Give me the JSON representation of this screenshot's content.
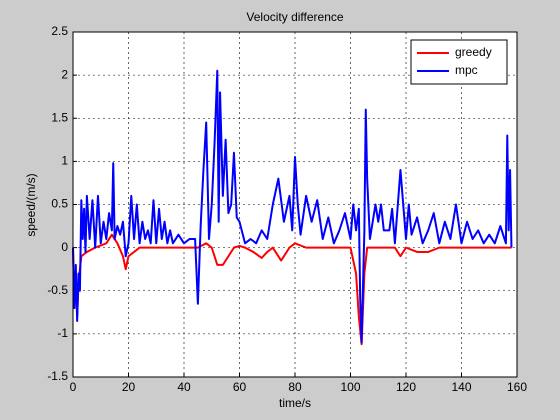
{
  "chart_data": {
    "type": "line",
    "title": "Velocity difference",
    "xlabel": "time/s",
    "ylabel": "speed/(m/s)",
    "xlim": [
      0,
      160
    ],
    "xticks": [
      0,
      20,
      40,
      60,
      80,
      100,
      120,
      140,
      160
    ],
    "ylim": [
      -1.5,
      2.5
    ],
    "yticks": [
      -1.5,
      -1,
      -0.5,
      0,
      0.5,
      1,
      1.5,
      2,
      2.5
    ],
    "grid": true,
    "legend": "northeast",
    "series": [
      {
        "name": "greedy",
        "color": "#ff0000",
        "x": [
          0,
          0.5,
          1,
          1.5,
          2,
          3,
          5,
          8,
          12,
          14,
          16,
          18,
          19,
          20,
          24,
          30,
          40,
          45,
          48,
          50,
          52,
          54,
          56,
          58,
          60,
          62,
          65,
          68,
          70,
          72,
          75,
          78,
          80,
          84,
          90,
          96,
          100,
          102,
          103,
          104,
          105,
          106,
          110,
          116,
          118,
          120,
          124,
          128,
          132,
          140,
          150,
          156,
          158
        ],
        "values": [
          0,
          -0.7,
          -0.3,
          -0.8,
          -0.4,
          -0.1,
          -0.05,
          0,
          0.05,
          0.15,
          0.05,
          -0.1,
          -0.25,
          -0.1,
          0,
          0,
          0,
          0,
          0.05,
          0,
          -0.2,
          -0.2,
          -0.1,
          0,
          0.02,
          0,
          -0.05,
          -0.12,
          -0.05,
          0,
          -0.15,
          0,
          0.05,
          0,
          0,
          0,
          0,
          -0.3,
          -0.8,
          -1.12,
          -0.3,
          0,
          0,
          0,
          -0.1,
          0,
          -0.05,
          -0.05,
          0,
          0,
          0,
          0,
          0
        ]
      },
      {
        "name": "mpc",
        "color": "#0000ff",
        "x": [
          0,
          0.5,
          1,
          1.5,
          2,
          2.5,
          3,
          3.5,
          4,
          4.5,
          5,
          6,
          7,
          8,
          9,
          10,
          11,
          12,
          13,
          14,
          14.5,
          15,
          16,
          17,
          18,
          19,
          20,
          21,
          22,
          23,
          24,
          25,
          26,
          27,
          28,
          29,
          30,
          31,
          32,
          33,
          34,
          35,
          36,
          38,
          40,
          42,
          44,
          45,
          46,
          47,
          48,
          49,
          50,
          51,
          52,
          52.5,
          53,
          54,
          55,
          56,
          57,
          58,
          59,
          60,
          62,
          64,
          66,
          68,
          70,
          72,
          74,
          76,
          78,
          79,
          80,
          81,
          82,
          84,
          86,
          88,
          90,
          92,
          94,
          96,
          98,
          100,
          101,
          102,
          103,
          103.5,
          104,
          105,
          105.5,
          106,
          107,
          108,
          109,
          110,
          111,
          112,
          114,
          115,
          116,
          118,
          120,
          121,
          122,
          124,
          126,
          128,
          130,
          132,
          134,
          136,
          138,
          140,
          142,
          144,
          146,
          148,
          150,
          152,
          154,
          156,
          156.5,
          157,
          157.5,
          158
        ],
        "values": [
          0,
          -0.7,
          -0.2,
          -0.85,
          -0.3,
          -0.5,
          0.55,
          0.1,
          0.45,
          -0.05,
          0.6,
          0.1,
          0.55,
          0,
          0.6,
          0.05,
          0.3,
          0.1,
          0.4,
          0.2,
          0.98,
          0.1,
          0.25,
          0.15,
          0.3,
          -0.1,
          0.05,
          0.6,
          0.1,
          0.5,
          0.05,
          0.3,
          0.1,
          0.2,
          0.05,
          0.55,
          0.05,
          0.45,
          0.1,
          0.3,
          0.05,
          0.2,
          0.05,
          0.15,
          0.05,
          0.1,
          0.1,
          -0.65,
          0.25,
          0.9,
          1.45,
          0.1,
          0.5,
          1.2,
          2.05,
          0.3,
          1.8,
          0.6,
          1.25,
          0.4,
          0.5,
          1.1,
          0.35,
          0.3,
          0.05,
          0.1,
          0.05,
          0.2,
          0.1,
          0.5,
          0.8,
          0.3,
          0.6,
          0.2,
          1.05,
          0.5,
          0.15,
          0.6,
          0.3,
          0.55,
          0.1,
          0.35,
          0.05,
          0.2,
          0.4,
          0.1,
          0.5,
          0.2,
          0.45,
          -0.6,
          -1.1,
          0.2,
          1.6,
          0.8,
          0.1,
          0.3,
          0.5,
          0.3,
          0.5,
          0.2,
          0.2,
          0.45,
          0.05,
          0.9,
          0.1,
          0.5,
          0.15,
          0.35,
          0.05,
          0.2,
          0.4,
          0.05,
          0.3,
          0.1,
          0.5,
          0.05,
          0.3,
          0.1,
          0.2,
          0.05,
          0.15,
          0.05,
          0.25,
          0.05,
          1.3,
          0.2,
          0.9,
          0
        ]
      }
    ]
  }
}
